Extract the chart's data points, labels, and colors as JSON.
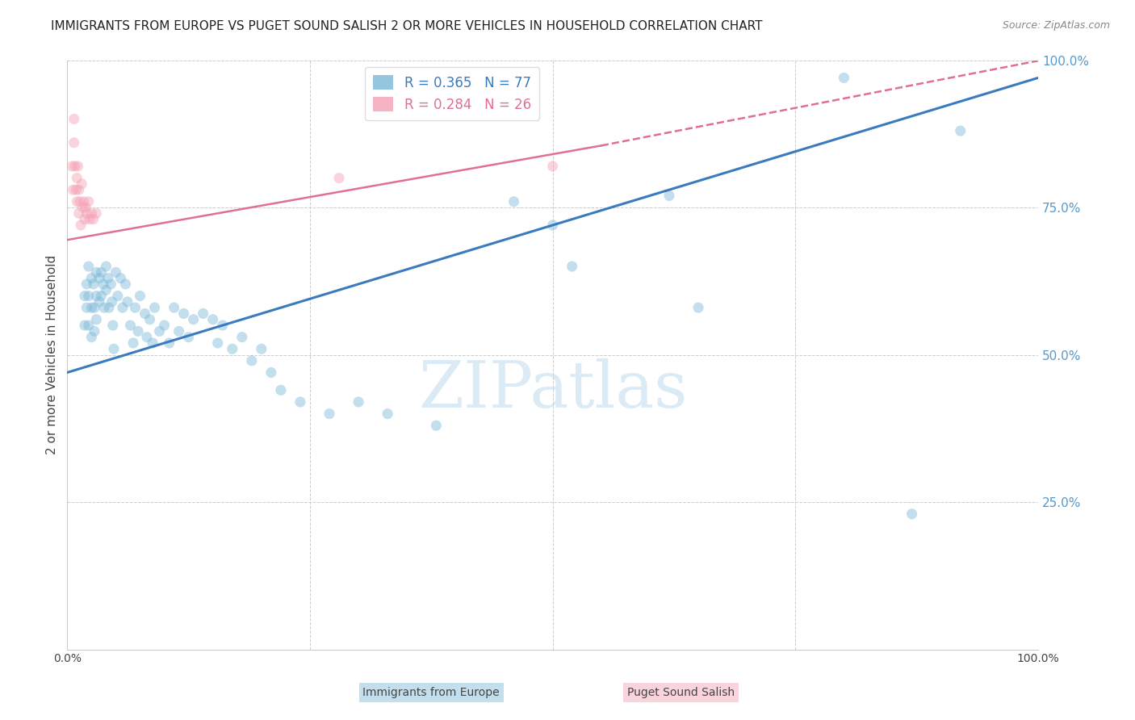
{
  "title": "IMMIGRANTS FROM EUROPE VS PUGET SOUND SALISH 2 OR MORE VEHICLES IN HOUSEHOLD CORRELATION CHART",
  "source": "Source: ZipAtlas.com",
  "ylabel": "2 or more Vehicles in Household",
  "watermark": "ZIPatlas",
  "blue_R": 0.365,
  "blue_N": 77,
  "pink_R": 0.284,
  "pink_N": 26,
  "blue_color": "#7ab8d9",
  "pink_color": "#f4a0b5",
  "blue_line_color": "#3a7bbf",
  "pink_line_color": "#e07090",
  "xlim": [
    0.0,
    1.0
  ],
  "ylim": [
    0.0,
    1.0
  ],
  "blue_trendline_x": [
    0.0,
    1.0
  ],
  "blue_trendline_y": [
    0.47,
    0.97
  ],
  "pink_trendline_x": [
    0.0,
    0.55
  ],
  "pink_trendline_y": [
    0.695,
    0.855
  ],
  "bg_color": "#ffffff",
  "grid_color": "#cccccc",
  "right_tick_color": "#5599cc",
  "title_fontsize": 11,
  "source_fontsize": 9,
  "legend_fontsize": 12,
  "ylabel_fontsize": 11,
  "marker_size": 90,
  "marker_alpha": 0.45,
  "blue_scatter_x": [
    0.018,
    0.018,
    0.02,
    0.02,
    0.022,
    0.022,
    0.022,
    0.025,
    0.025,
    0.025,
    0.027,
    0.028,
    0.028,
    0.03,
    0.03,
    0.03,
    0.033,
    0.033,
    0.035,
    0.035,
    0.037,
    0.038,
    0.04,
    0.04,
    0.042,
    0.043,
    0.045,
    0.046,
    0.047,
    0.048,
    0.05,
    0.052,
    0.055,
    0.057,
    0.06,
    0.062,
    0.065,
    0.068,
    0.07,
    0.073,
    0.075,
    0.08,
    0.082,
    0.085,
    0.088,
    0.09,
    0.095,
    0.1,
    0.105,
    0.11,
    0.115,
    0.12,
    0.125,
    0.13,
    0.14,
    0.15,
    0.155,
    0.16,
    0.17,
    0.18,
    0.19,
    0.2,
    0.21,
    0.22,
    0.24,
    0.27,
    0.3,
    0.33,
    0.38,
    0.46,
    0.5,
    0.52,
    0.62,
    0.65,
    0.8,
    0.87,
    0.92
  ],
  "blue_scatter_y": [
    0.6,
    0.55,
    0.62,
    0.58,
    0.65,
    0.6,
    0.55,
    0.63,
    0.58,
    0.53,
    0.62,
    0.58,
    0.54,
    0.64,
    0.6,
    0.56,
    0.63,
    0.59,
    0.64,
    0.6,
    0.62,
    0.58,
    0.65,
    0.61,
    0.63,
    0.58,
    0.62,
    0.59,
    0.55,
    0.51,
    0.64,
    0.6,
    0.63,
    0.58,
    0.62,
    0.59,
    0.55,
    0.52,
    0.58,
    0.54,
    0.6,
    0.57,
    0.53,
    0.56,
    0.52,
    0.58,
    0.54,
    0.55,
    0.52,
    0.58,
    0.54,
    0.57,
    0.53,
    0.56,
    0.57,
    0.56,
    0.52,
    0.55,
    0.51,
    0.53,
    0.49,
    0.51,
    0.47,
    0.44,
    0.42,
    0.4,
    0.42,
    0.4,
    0.38,
    0.76,
    0.72,
    0.65,
    0.77,
    0.58,
    0.97,
    0.23,
    0.88
  ],
  "pink_scatter_x": [
    0.005,
    0.006,
    0.007,
    0.007,
    0.008,
    0.009,
    0.01,
    0.01,
    0.011,
    0.012,
    0.012,
    0.013,
    0.014,
    0.015,
    0.016,
    0.017,
    0.018,
    0.019,
    0.02,
    0.022,
    0.023,
    0.025,
    0.027,
    0.03,
    0.28,
    0.5
  ],
  "pink_scatter_y": [
    0.82,
    0.78,
    0.9,
    0.86,
    0.82,
    0.78,
    0.8,
    0.76,
    0.82,
    0.78,
    0.74,
    0.76,
    0.72,
    0.79,
    0.75,
    0.76,
    0.73,
    0.75,
    0.74,
    0.76,
    0.73,
    0.74,
    0.73,
    0.74,
    0.8,
    0.82
  ]
}
